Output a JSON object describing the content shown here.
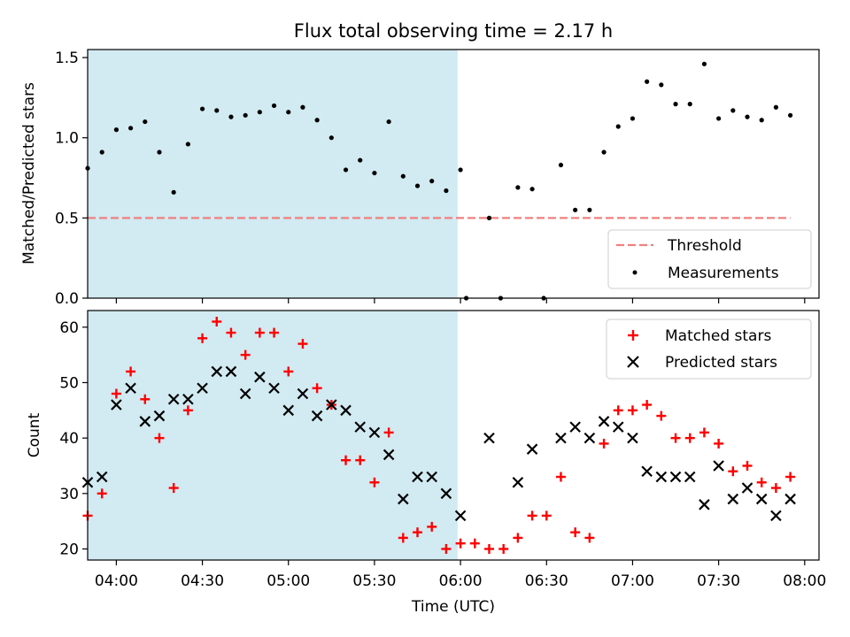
{
  "chart_data": [
    {
      "type": "scatter",
      "title": "Flux total observing time = 2.17 h",
      "ylabel": "Matched/Predicted stars",
      "xlim": [
        "03:50",
        "08:05"
      ],
      "ylim": [
        0,
        1.55
      ],
      "y_ticks": [
        "0.0",
        "0.5",
        "1.0",
        "1.5"
      ],
      "shaded_span": [
        "03:50",
        "05:59"
      ],
      "shaded_color": "#add8e6",
      "threshold": {
        "name": "Threshold",
        "value": 0.5,
        "x_range": [
          "03:50",
          "07:55"
        ],
        "color": "#f08080",
        "style": "dashed"
      },
      "legend": [
        "Threshold",
        "Measurements"
      ],
      "legend_position": "lower right",
      "series": [
        {
          "name": "Measurements",
          "marker": "dot",
          "color": "#000000",
          "points": [
            [
              "03:50",
              0.81
            ],
            [
              "03:55",
              0.91
            ],
            [
              "04:00",
              1.05
            ],
            [
              "04:05",
              1.06
            ],
            [
              "04:10",
              1.1
            ],
            [
              "04:15",
              0.91
            ],
            [
              "04:20",
              0.66
            ],
            [
              "04:25",
              0.96
            ],
            [
              "04:30",
              1.18
            ],
            [
              "04:35",
              1.17
            ],
            [
              "04:40",
              1.13
            ],
            [
              "04:45",
              1.14
            ],
            [
              "04:50",
              1.16
            ],
            [
              "04:55",
              1.2
            ],
            [
              "05:00",
              1.16
            ],
            [
              "05:05",
              1.19
            ],
            [
              "05:10",
              1.11
            ],
            [
              "05:15",
              1.0
            ],
            [
              "05:20",
              0.8
            ],
            [
              "05:25",
              0.86
            ],
            [
              "05:30",
              0.78
            ],
            [
              "05:35",
              1.1
            ],
            [
              "05:40",
              0.76
            ],
            [
              "05:45",
              0.7
            ],
            [
              "05:50",
              0.73
            ],
            [
              "05:55",
              0.67
            ],
            [
              "06:00",
              0.8
            ],
            [
              "06:02",
              0.0
            ],
            [
              "06:10",
              0.5
            ],
            [
              "06:14",
              0.0
            ],
            [
              "06:20",
              0.69
            ],
            [
              "06:25",
              0.68
            ],
            [
              "06:29",
              0.0
            ],
            [
              "06:35",
              0.83
            ],
            [
              "06:40",
              0.55
            ],
            [
              "06:45",
              0.55
            ],
            [
              "06:50",
              0.91
            ],
            [
              "06:55",
              1.07
            ],
            [
              "07:00",
              1.12
            ],
            [
              "07:05",
              1.35
            ],
            [
              "07:10",
              1.33
            ],
            [
              "07:15",
              1.21
            ],
            [
              "07:20",
              1.21
            ],
            [
              "07:25",
              1.46
            ],
            [
              "07:30",
              1.12
            ],
            [
              "07:35",
              1.17
            ],
            [
              "07:40",
              1.13
            ],
            [
              "07:45",
              1.11
            ],
            [
              "07:50",
              1.19
            ],
            [
              "07:55",
              1.14
            ]
          ]
        }
      ]
    },
    {
      "type": "scatter",
      "xlabel": "Time (UTC)",
      "ylabel": "Count",
      "xlim": [
        "03:50",
        "08:05"
      ],
      "ylim": [
        18,
        63
      ],
      "x_ticks": [
        "04:00",
        "04:30",
        "05:00",
        "05:30",
        "06:00",
        "06:30",
        "07:00",
        "07:30",
        "08:00"
      ],
      "y_ticks": [
        "20",
        "30",
        "40",
        "50",
        "60"
      ],
      "shaded_span": [
        "03:50",
        "05:59"
      ],
      "shaded_color": "#add8e6",
      "legend": [
        "Matched stars",
        "Predicted stars"
      ],
      "legend_position": "upper right",
      "series": [
        {
          "name": "Matched stars",
          "marker": "plus",
          "color": "#ff0000",
          "points": [
            [
              "03:50",
              26
            ],
            [
              "03:55",
              30
            ],
            [
              "04:00",
              48
            ],
            [
              "04:05",
              52
            ],
            [
              "04:10",
              47
            ],
            [
              "04:15",
              40
            ],
            [
              "04:20",
              31
            ],
            [
              "04:25",
              45
            ],
            [
              "04:30",
              58
            ],
            [
              "04:35",
              61
            ],
            [
              "04:40",
              59
            ],
            [
              "04:45",
              55
            ],
            [
              "04:50",
              59
            ],
            [
              "04:55",
              59
            ],
            [
              "05:00",
              52
            ],
            [
              "05:05",
              57
            ],
            [
              "05:10",
              49
            ],
            [
              "05:15",
              46
            ],
            [
              "05:20",
              36
            ],
            [
              "05:25",
              36
            ],
            [
              "05:30",
              32
            ],
            [
              "05:35",
              41
            ],
            [
              "05:40",
              22
            ],
            [
              "05:45",
              23
            ],
            [
              "05:50",
              24
            ],
            [
              "05:55",
              20
            ],
            [
              "06:00",
              21
            ],
            [
              "06:05",
              21
            ],
            [
              "06:10",
              20
            ],
            [
              "06:15",
              20
            ],
            [
              "06:20",
              22
            ],
            [
              "06:25",
              26
            ],
            [
              "06:30",
              26
            ],
            [
              "06:35",
              33
            ],
            [
              "06:40",
              23
            ],
            [
              "06:45",
              22
            ],
            [
              "06:50",
              39
            ],
            [
              "06:55",
              45
            ],
            [
              "07:00",
              45
            ],
            [
              "07:05",
              46
            ],
            [
              "07:10",
              44
            ],
            [
              "07:15",
              40
            ],
            [
              "07:20",
              40
            ],
            [
              "07:25",
              41
            ],
            [
              "07:30",
              39
            ],
            [
              "07:35",
              34
            ],
            [
              "07:40",
              35
            ],
            [
              "07:45",
              32
            ],
            [
              "07:50",
              31
            ],
            [
              "07:55",
              33
            ]
          ]
        },
        {
          "name": "Predicted stars",
          "marker": "x",
          "color": "#000000",
          "points": [
            [
              "03:50",
              32
            ],
            [
              "03:55",
              33
            ],
            [
              "04:00",
              46
            ],
            [
              "04:05",
              49
            ],
            [
              "04:10",
              43
            ],
            [
              "04:15",
              44
            ],
            [
              "04:20",
              47
            ],
            [
              "04:25",
              47
            ],
            [
              "04:30",
              49
            ],
            [
              "04:35",
              52
            ],
            [
              "04:40",
              52
            ],
            [
              "04:45",
              48
            ],
            [
              "04:50",
              51
            ],
            [
              "04:55",
              49
            ],
            [
              "05:00",
              45
            ],
            [
              "05:05",
              48
            ],
            [
              "05:10",
              44
            ],
            [
              "05:15",
              46
            ],
            [
              "05:20",
              45
            ],
            [
              "05:25",
              42
            ],
            [
              "05:30",
              41
            ],
            [
              "05:35",
              37
            ],
            [
              "05:40",
              29
            ],
            [
              "05:45",
              33
            ],
            [
              "05:50",
              33
            ],
            [
              "05:55",
              30
            ],
            [
              "06:00",
              26
            ],
            [
              "06:10",
              40
            ],
            [
              "06:20",
              32
            ],
            [
              "06:25",
              38
            ],
            [
              "06:35",
              40
            ],
            [
              "06:40",
              42
            ],
            [
              "06:45",
              40
            ],
            [
              "06:50",
              43
            ],
            [
              "06:55",
              42
            ],
            [
              "07:00",
              40
            ],
            [
              "07:05",
              34
            ],
            [
              "07:10",
              33
            ],
            [
              "07:15",
              33
            ],
            [
              "07:20",
              33
            ],
            [
              "07:25",
              28
            ],
            [
              "07:30",
              35
            ],
            [
              "07:35",
              29
            ],
            [
              "07:40",
              31
            ],
            [
              "07:45",
              29
            ],
            [
              "07:50",
              26
            ],
            [
              "07:55",
              29
            ]
          ]
        }
      ]
    }
  ]
}
